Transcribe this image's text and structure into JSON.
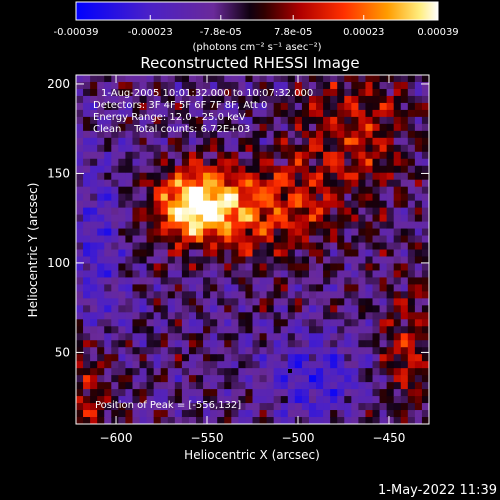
{
  "chart_data": {
    "type": "heatmap",
    "title": "Reconstructed RHESSI Image",
    "xlabel": "Heliocentric X (arcsec)",
    "ylabel": "Heliocentric Y (arcsec)",
    "xlim": [
      -622,
      -428
    ],
    "ylim": [
      10,
      205
    ],
    "xticks": [
      -600,
      -550,
      -500,
      -450
    ],
    "yticks": [
      50,
      100,
      150,
      200
    ],
    "colorbar": {
      "range": [
        -0.00039,
        0.00039
      ],
      "ticks": [
        -0.00039,
        -0.00023,
        -7.8e-05,
        7.8e-05,
        0.00023,
        0.00039
      ],
      "tick_labels": [
        "-0.00039",
        "-0.00023",
        "-7.8e-05",
        "7.8e-05",
        "0.00023",
        "0.00039"
      ],
      "units": "(photons cm⁻² s⁻¹ asec⁻²)"
    },
    "annotations": [
      "1-Aug-2005 10:01:32.000 to 10:07:32.000",
      "Detectors: 3F 4F 5F 6F 7F 8F, Att 0",
      "Energy Range: 12.0 - 25.0 keV",
      "Clean    Total counts: 6.72E+03"
    ],
    "peak_label": "Position of Peak = [-556,132]",
    "peak": [
      -556,
      132
    ],
    "colormap": [
      "#0000ff",
      "#5500bb",
      "#7a2aa0",
      "#1a0010",
      "#aa0000",
      "#ff3300",
      "#ff9900",
      "#ffff99",
      "#ffffff"
    ]
  },
  "footer": {
    "timestamp": "1-May-2022 11:39"
  }
}
